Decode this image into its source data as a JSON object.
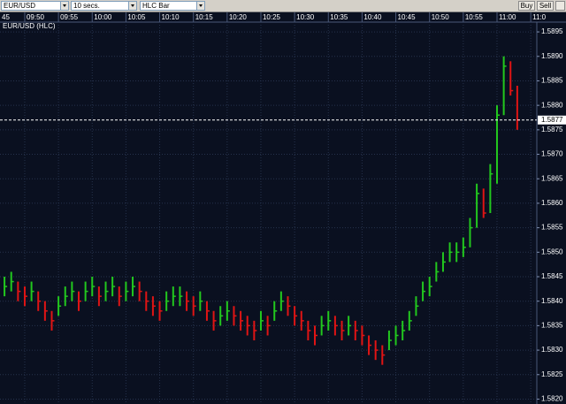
{
  "toolbar": {
    "symbol": "EUR/USD",
    "interval": "10 secs.",
    "chart_style": "HLC Bar",
    "buy": "Buy",
    "sell": "Sell"
  },
  "chart_data": {
    "type": "hlc",
    "title": "EUR/USD (HLC)",
    "x": [
      "09:47",
      "09:48",
      "09:49",
      "09:50",
      "09:51",
      "09:52",
      "09:53",
      "09:54",
      "09:55",
      "09:56",
      "09:57",
      "09:58",
      "09:59",
      "10:00",
      "10:01",
      "10:02",
      "10:03",
      "10:04",
      "10:05",
      "10:06",
      "10:07",
      "10:08",
      "10:09",
      "10:10",
      "10:11",
      "10:12",
      "10:13",
      "10:14",
      "10:15",
      "10:16",
      "10:17",
      "10:18",
      "10:19",
      "10:20",
      "10:21",
      "10:22",
      "10:23",
      "10:24",
      "10:25",
      "10:26",
      "10:27",
      "10:28",
      "10:29",
      "10:30",
      "10:31",
      "10:32",
      "10:33",
      "10:34",
      "10:35",
      "10:36",
      "10:37",
      "10:38",
      "10:39",
      "10:40",
      "10:41",
      "10:42",
      "10:43",
      "10:44",
      "10:45",
      "10:46",
      "10:47",
      "10:48",
      "10:49",
      "10:50",
      "10:51",
      "10:52",
      "10:53",
      "10:54",
      "10:55",
      "10:56",
      "10:57",
      "10:58",
      "10:59",
      "11:00",
      "11:01",
      "11:02",
      "11:03"
    ],
    "high": [
      1.5845,
      1.5846,
      1.5844,
      1.5843,
      1.5844,
      1.5842,
      1.584,
      1.5838,
      1.5841,
      1.5843,
      1.5844,
      1.5842,
      1.5844,
      1.5845,
      1.5843,
      1.5844,
      1.5845,
      1.5843,
      1.5844,
      1.5845,
      1.5844,
      1.5842,
      1.5841,
      1.584,
      1.5842,
      1.5843,
      1.5843,
      1.5842,
      1.5841,
      1.5842,
      1.584,
      1.5838,
      1.5839,
      1.584,
      1.5839,
      1.5838,
      1.5837,
      1.5836,
      1.5838,
      1.5837,
      1.584,
      1.5842,
      1.5841,
      1.5839,
      1.5838,
      1.5836,
      1.5835,
      1.5837,
      1.5838,
      1.5837,
      1.5836,
      1.5837,
      1.5836,
      1.5835,
      1.5833,
      1.5832,
      1.5831,
      1.5834,
      1.5835,
      1.5836,
      1.5838,
      1.5841,
      1.5844,
      1.5845,
      1.5848,
      1.585,
      1.5852,
      1.5852,
      1.5853,
      1.5857,
      1.5864,
      1.5863,
      1.5868,
      1.588,
      1.589,
      1.5889,
      1.5884
    ],
    "low": [
      1.5841,
      1.5842,
      1.584,
      1.5839,
      1.584,
      1.5838,
      1.5836,
      1.5834,
      1.5837,
      1.5839,
      1.584,
      1.5838,
      1.584,
      1.5841,
      1.5839,
      1.584,
      1.5841,
      1.5839,
      1.584,
      1.5841,
      1.584,
      1.5838,
      1.5837,
      1.5836,
      1.5838,
      1.5839,
      1.5839,
      1.5838,
      1.5837,
      1.5838,
      1.5836,
      1.5834,
      1.5835,
      1.5836,
      1.5835,
      1.5834,
      1.5833,
      1.5832,
      1.5834,
      1.5833,
      1.5836,
      1.5838,
      1.5837,
      1.5835,
      1.5834,
      1.5832,
      1.5831,
      1.5833,
      1.5834,
      1.5833,
      1.5832,
      1.5833,
      1.5832,
      1.5831,
      1.5829,
      1.5828,
      1.5827,
      1.583,
      1.5831,
      1.5832,
      1.5834,
      1.5837,
      1.584,
      1.5841,
      1.5844,
      1.5846,
      1.5848,
      1.5848,
      1.5849,
      1.5851,
      1.5855,
      1.5857,
      1.5858,
      1.5864,
      1.5878,
      1.5882,
      1.5875
    ],
    "close": [
      1.5843,
      1.5844,
      1.5842,
      1.5841,
      1.5842,
      1.584,
      1.5838,
      1.5836,
      1.5839,
      1.5841,
      1.5842,
      1.584,
      1.5842,
      1.5843,
      1.5841,
      1.5842,
      1.5843,
      1.5841,
      1.5842,
      1.5843,
      1.5842,
      1.584,
      1.5839,
      1.5838,
      1.584,
      1.5841,
      1.5841,
      1.584,
      1.5839,
      1.584,
      1.5838,
      1.5836,
      1.5837,
      1.5838,
      1.5837,
      1.5836,
      1.5835,
      1.5834,
      1.5836,
      1.5835,
      1.5838,
      1.584,
      1.5839,
      1.5837,
      1.5836,
      1.5834,
      1.5833,
      1.5835,
      1.5836,
      1.5835,
      1.5834,
      1.5835,
      1.5834,
      1.5833,
      1.5831,
      1.583,
      1.5829,
      1.5832,
      1.5833,
      1.5834,
      1.5836,
      1.5839,
      1.5842,
      1.5843,
      1.5846,
      1.5848,
      1.585,
      1.585,
      1.5851,
      1.5855,
      1.5862,
      1.5858,
      1.5866,
      1.5878,
      1.5888,
      1.5883,
      1.5877
    ],
    "up_color": "#22c81e",
    "down_color": "#e01414",
    "xlim": [
      "09:46:20",
      "11:05:54"
    ],
    "xticks": [
      {
        "value": "09:45",
        "label": "45"
      },
      "09:50",
      "09:55",
      "10:00",
      "10:05",
      "10:10",
      "10:15",
      "10:20",
      "10:25",
      "10:30",
      "10:35",
      "10:40",
      "10:45",
      "10:50",
      "10:55",
      "11:00",
      {
        "value": "11:05",
        "label": "11:0"
      }
    ],
    "ylim": [
      1.5819,
      1.5897
    ],
    "yticks": [
      1.5895,
      {
        "value": 1.589,
        "label": "1.5890"
      },
      1.5885,
      {
        "value": 1.588,
        "label": "1.5880"
      },
      1.5875,
      {
        "value": 1.587,
        "label": "1.5870"
      },
      1.5865,
      {
        "value": 1.586,
        "label": "1.5860"
      },
      1.5855,
      {
        "value": 1.585,
        "label": "1.5850"
      },
      1.5845,
      {
        "value": 1.584,
        "label": "1.5840"
      },
      1.5835,
      {
        "value": 1.583,
        "label": "1.5830"
      },
      1.5825,
      {
        "value": 1.582,
        "label": "1.5820"
      }
    ],
    "last_price": {
      "value": 1.5877,
      "label": "1.5877"
    },
    "grid": true
  }
}
